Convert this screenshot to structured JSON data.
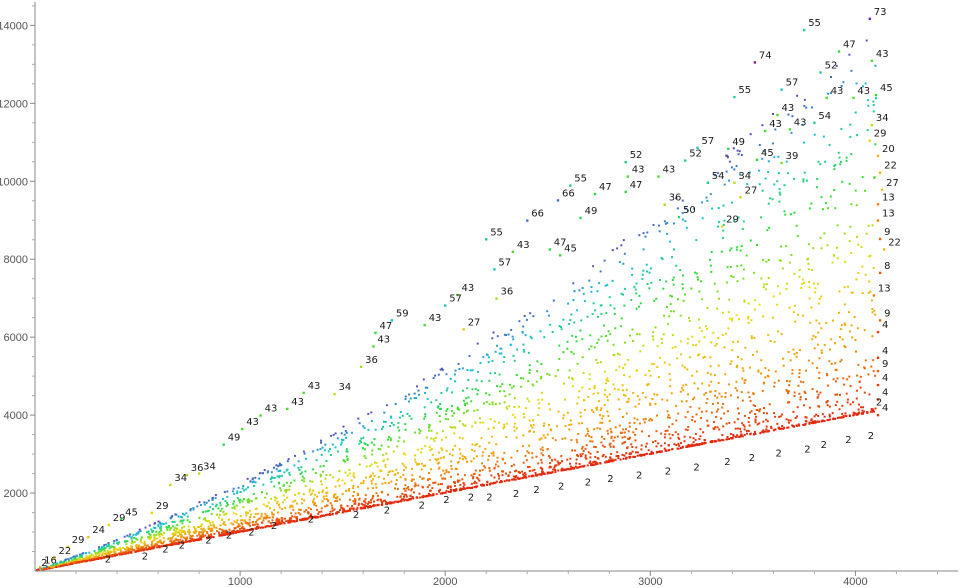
{
  "chart_data": {
    "type": "scatter",
    "title": "",
    "xlabel": "",
    "ylabel": "",
    "xlim": [
      0,
      4500
    ],
    "ylim": [
      0,
      14600
    ],
    "grid": false,
    "x_ticks": [
      1000,
      2000,
      3000,
      4000
    ],
    "y_ticks": [
      2000,
      4000,
      6000,
      8000,
      10000,
      12000,
      14000
    ],
    "color_scale": {
      "low_value": 2,
      "high_value": 74,
      "low_color": "#e3280e",
      "mid_colors": [
        "#f2a20a",
        "#e6dd10",
        "#33dd33",
        "#18c0d8"
      ],
      "high_color": "#7a1aa8",
      "point_count": 4000,
      "note": "point color encodes the annotated number (2 = red ... 74 = violet)"
    },
    "boundary_points": [
      {
        "x": 10,
        "y": 20,
        "label": "2"
      },
      {
        "x": 4080,
        "y": 4150,
        "label": "2"
      },
      {
        "x": 25,
        "y": 90,
        "label": "16"
      },
      {
        "x": 95,
        "y": 330,
        "label": "22"
      },
      {
        "x": 160,
        "y": 620,
        "label": "29"
      },
      {
        "x": 260,
        "y": 870,
        "label": "24"
      },
      {
        "x": 360,
        "y": 1180,
        "label": "29"
      },
      {
        "x": 420,
        "y": 1320,
        "label": "45"
      },
      {
        "x": 570,
        "y": 1490,
        "label": "29"
      },
      {
        "x": 660,
        "y": 2210,
        "label": "34"
      },
      {
        "x": 740,
        "y": 2460,
        "label": "36"
      },
      {
        "x": 800,
        "y": 2500,
        "label": "34"
      },
      {
        "x": 920,
        "y": 3240,
        "label": "49"
      },
      {
        "x": 1010,
        "y": 3640,
        "label": "43"
      },
      {
        "x": 1100,
        "y": 3990,
        "label": "43"
      },
      {
        "x": 1230,
        "y": 4160,
        "label": "43"
      },
      {
        "x": 1310,
        "y": 4570,
        "label": "43"
      },
      {
        "x": 1460,
        "y": 4540,
        "label": "34"
      },
      {
        "x": 1590,
        "y": 5240,
        "label": "36"
      },
      {
        "x": 1650,
        "y": 5760,
        "label": "43"
      },
      {
        "x": 1660,
        "y": 6110,
        "label": "47"
      },
      {
        "x": 1740,
        "y": 6430,
        "label": "59"
      },
      {
        "x": 1900,
        "y": 6310,
        "label": "43"
      },
      {
        "x": 2000,
        "y": 6810,
        "label": "57"
      },
      {
        "x": 2060,
        "y": 7080,
        "label": "43"
      },
      {
        "x": 2090,
        "y": 6200,
        "label": "27"
      },
      {
        "x": 2250,
        "y": 6990,
        "label": "36"
      },
      {
        "x": 2200,
        "y": 8510,
        "label": "55"
      },
      {
        "x": 2240,
        "y": 7740,
        "label": "57"
      },
      {
        "x": 2330,
        "y": 8190,
        "label": "43"
      },
      {
        "x": 2400,
        "y": 8990,
        "label": "66"
      },
      {
        "x": 2510,
        "y": 8250,
        "label": "47"
      },
      {
        "x": 2560,
        "y": 8100,
        "label": "45"
      },
      {
        "x": 2610,
        "y": 9890,
        "label": "55"
      },
      {
        "x": 2550,
        "y": 9510,
        "label": "66"
      },
      {
        "x": 2660,
        "y": 9060,
        "label": "49"
      },
      {
        "x": 2730,
        "y": 9670,
        "label": "47"
      },
      {
        "x": 2880,
        "y": 9730,
        "label": "47"
      },
      {
        "x": 2890,
        "y": 10120,
        "label": "43"
      },
      {
        "x": 3040,
        "y": 10120,
        "label": "43"
      },
      {
        "x": 2880,
        "y": 10490,
        "label": "52"
      },
      {
        "x": 3170,
        "y": 10530,
        "label": "52"
      },
      {
        "x": 3230,
        "y": 10860,
        "label": "57"
      },
      {
        "x": 3070,
        "y": 9400,
        "label": "36"
      },
      {
        "x": 3140,
        "y": 9080,
        "label": "50"
      },
      {
        "x": 3280,
        "y": 9960,
        "label": "54"
      },
      {
        "x": 3410,
        "y": 9960,
        "label": "34"
      },
      {
        "x": 3350,
        "y": 8840,
        "label": "29"
      },
      {
        "x": 3440,
        "y": 9590,
        "label": "27"
      },
      {
        "x": 3380,
        "y": 10830,
        "label": "49"
      },
      {
        "x": 3520,
        "y": 10550,
        "label": "45"
      },
      {
        "x": 3640,
        "y": 10470,
        "label": "39"
      },
      {
        "x": 3560,
        "y": 11290,
        "label": "43"
      },
      {
        "x": 3680,
        "y": 11330,
        "label": "43"
      },
      {
        "x": 3620,
        "y": 11700,
        "label": "43"
      },
      {
        "x": 3800,
        "y": 11500,
        "label": "54"
      },
      {
        "x": 3410,
        "y": 12160,
        "label": "55"
      },
      {
        "x": 3510,
        "y": 13050,
        "label": "74"
      },
      {
        "x": 3640,
        "y": 12350,
        "label": "57"
      },
      {
        "x": 3860,
        "y": 12140,
        "label": "43"
      },
      {
        "x": 3990,
        "y": 12140,
        "label": "43"
      },
      {
        "x": 3830,
        "y": 12790,
        "label": "52"
      },
      {
        "x": 3920,
        "y": 13330,
        "label": "47"
      },
      {
        "x": 3750,
        "y": 13880,
        "label": "55"
      },
      {
        "x": 4070,
        "y": 14170,
        "label": "73"
      },
      {
        "x": 4080,
        "y": 13090,
        "label": "43"
      },
      {
        "x": 4100,
        "y": 12210,
        "label": "45"
      },
      {
        "x": 4080,
        "y": 11440,
        "label": "34"
      },
      {
        "x": 4070,
        "y": 11040,
        "label": "29"
      },
      {
        "x": 4110,
        "y": 10650,
        "label": "20"
      },
      {
        "x": 4120,
        "y": 10220,
        "label": "22"
      },
      {
        "x": 4130,
        "y": 9780,
        "label": "27"
      },
      {
        "x": 4110,
        "y": 9410,
        "label": "13"
      },
      {
        "x": 4110,
        "y": 8990,
        "label": "13"
      },
      {
        "x": 4120,
        "y": 8520,
        "label": "9"
      },
      {
        "x": 4140,
        "y": 8250,
        "label": "22"
      },
      {
        "x": 4120,
        "y": 7650,
        "label": "8"
      },
      {
        "x": 4090,
        "y": 7070,
        "label": "13"
      },
      {
        "x": 4120,
        "y": 6430,
        "label": "9"
      },
      {
        "x": 4110,
        "y": 6130,
        "label": "4"
      },
      {
        "x": 4110,
        "y": 5470,
        "label": "4"
      },
      {
        "x": 4110,
        "y": 5130,
        "label": "9"
      },
      {
        "x": 4110,
        "y": 4770,
        "label": "4"
      },
      {
        "x": 4110,
        "y": 4400,
        "label": "4"
      },
      {
        "x": 4110,
        "y": 4000,
        "label": "4"
      }
    ],
    "base_line_labels": [
      {
        "x": 340,
        "y": 220,
        "label": "2"
      },
      {
        "x": 520,
        "y": 300,
        "label": "2"
      },
      {
        "x": 620,
        "y": 480,
        "label": "2"
      },
      {
        "x": 700,
        "y": 580,
        "label": "2"
      },
      {
        "x": 830,
        "y": 710,
        "label": "2"
      },
      {
        "x": 930,
        "y": 830,
        "label": "2"
      },
      {
        "x": 1040,
        "y": 910,
        "label": "2"
      },
      {
        "x": 1150,
        "y": 1080,
        "label": "2"
      },
      {
        "x": 1330,
        "y": 1240,
        "label": "2"
      },
      {
        "x": 1550,
        "y": 1360,
        "label": "2"
      },
      {
        "x": 1700,
        "y": 1480,
        "label": "2"
      },
      {
        "x": 1870,
        "y": 1600,
        "label": "2"
      },
      {
        "x": 1990,
        "y": 1750,
        "label": "2"
      },
      {
        "x": 2110,
        "y": 1810,
        "label": "2"
      },
      {
        "x": 2200,
        "y": 1810,
        "label": "2"
      },
      {
        "x": 2330,
        "y": 1900,
        "label": "2"
      },
      {
        "x": 2430,
        "y": 2000,
        "label": "2"
      },
      {
        "x": 2550,
        "y": 2090,
        "label": "2"
      },
      {
        "x": 2680,
        "y": 2200,
        "label": "2"
      },
      {
        "x": 2790,
        "y": 2280,
        "label": "2"
      },
      {
        "x": 2930,
        "y": 2370,
        "label": "2"
      },
      {
        "x": 3070,
        "y": 2470,
        "label": "2"
      },
      {
        "x": 3210,
        "y": 2580,
        "label": "2"
      },
      {
        "x": 3360,
        "y": 2720,
        "label": "2"
      },
      {
        "x": 3480,
        "y": 2820,
        "label": "2"
      },
      {
        "x": 3610,
        "y": 2940,
        "label": "2"
      },
      {
        "x": 3750,
        "y": 3040,
        "label": "2"
      },
      {
        "x": 3830,
        "y": 3160,
        "label": "2"
      },
      {
        "x": 3950,
        "y": 3280,
        "label": "2"
      },
      {
        "x": 4060,
        "y": 3390,
        "label": "2"
      }
    ]
  }
}
